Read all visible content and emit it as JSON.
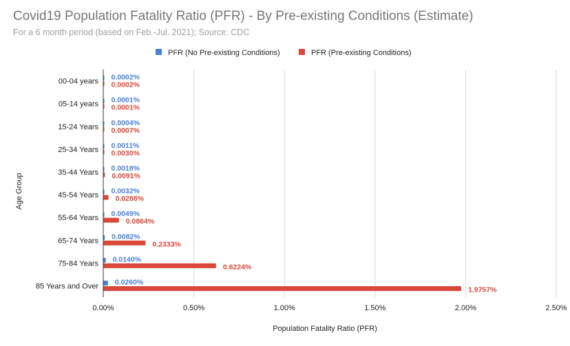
{
  "chart_data": {
    "type": "bar",
    "orientation": "horizontal",
    "title": "Covid19 Population Fatality Ratio (PFR) - By Pre-existing Conditions (Estimate)",
    "subtitle": "For a 6 month period (based on Feb.-Jul. 2021); Source: CDC",
    "xlabel": "Population Fatality Ratio (PFR)",
    "ylabel": "Age Group",
    "xlim": [
      0,
      2.5
    ],
    "xticks": [
      0,
      0.5,
      1.0,
      1.5,
      2.0,
      2.5
    ],
    "xtick_labels": [
      "0.00%",
      "0.50%",
      "1.00%",
      "1.50%",
      "2.00%",
      "2.50%"
    ],
    "grid": true,
    "legend_position": "top",
    "categories": [
      "00-04 years",
      "05-14 years",
      "15-24 Years",
      "25-34 Years",
      "35-44 Years",
      "45-54 Years",
      "55-64 Years",
      "65-74 Years",
      "75-84 Years",
      "85 Years and Over"
    ],
    "series": [
      {
        "name": "PFR (No Pre-existing Conditions)",
        "color": "#4a7fd4",
        "values": [
          0.0002,
          0.0001,
          0.0004,
          0.0011,
          0.0018,
          0.0032,
          0.0049,
          0.0082,
          0.014,
          0.026
        ],
        "labels": [
          "0.0002%",
          "0.0001%",
          "0.0004%",
          "0.0011%",
          "0.0018%",
          "0.0032%",
          "0.0049%",
          "0.0082%",
          "0.0140%",
          "0.0260%"
        ]
      },
      {
        "name": "PFR (Pre-existing Conditions)",
        "color": "#d9483b",
        "values": [
          0.0002,
          0.0001,
          0.0007,
          0.003,
          0.0091,
          0.0288,
          0.0864,
          0.2333,
          0.6224,
          1.9757
        ],
        "labels": [
          "0.0002%",
          "0.0001%",
          "0.0007%",
          "0.0030%",
          "0.0091%",
          "0.0288%",
          "0.0864%",
          "0.2333%",
          "0.6224%",
          "1.9757%"
        ]
      }
    ]
  }
}
